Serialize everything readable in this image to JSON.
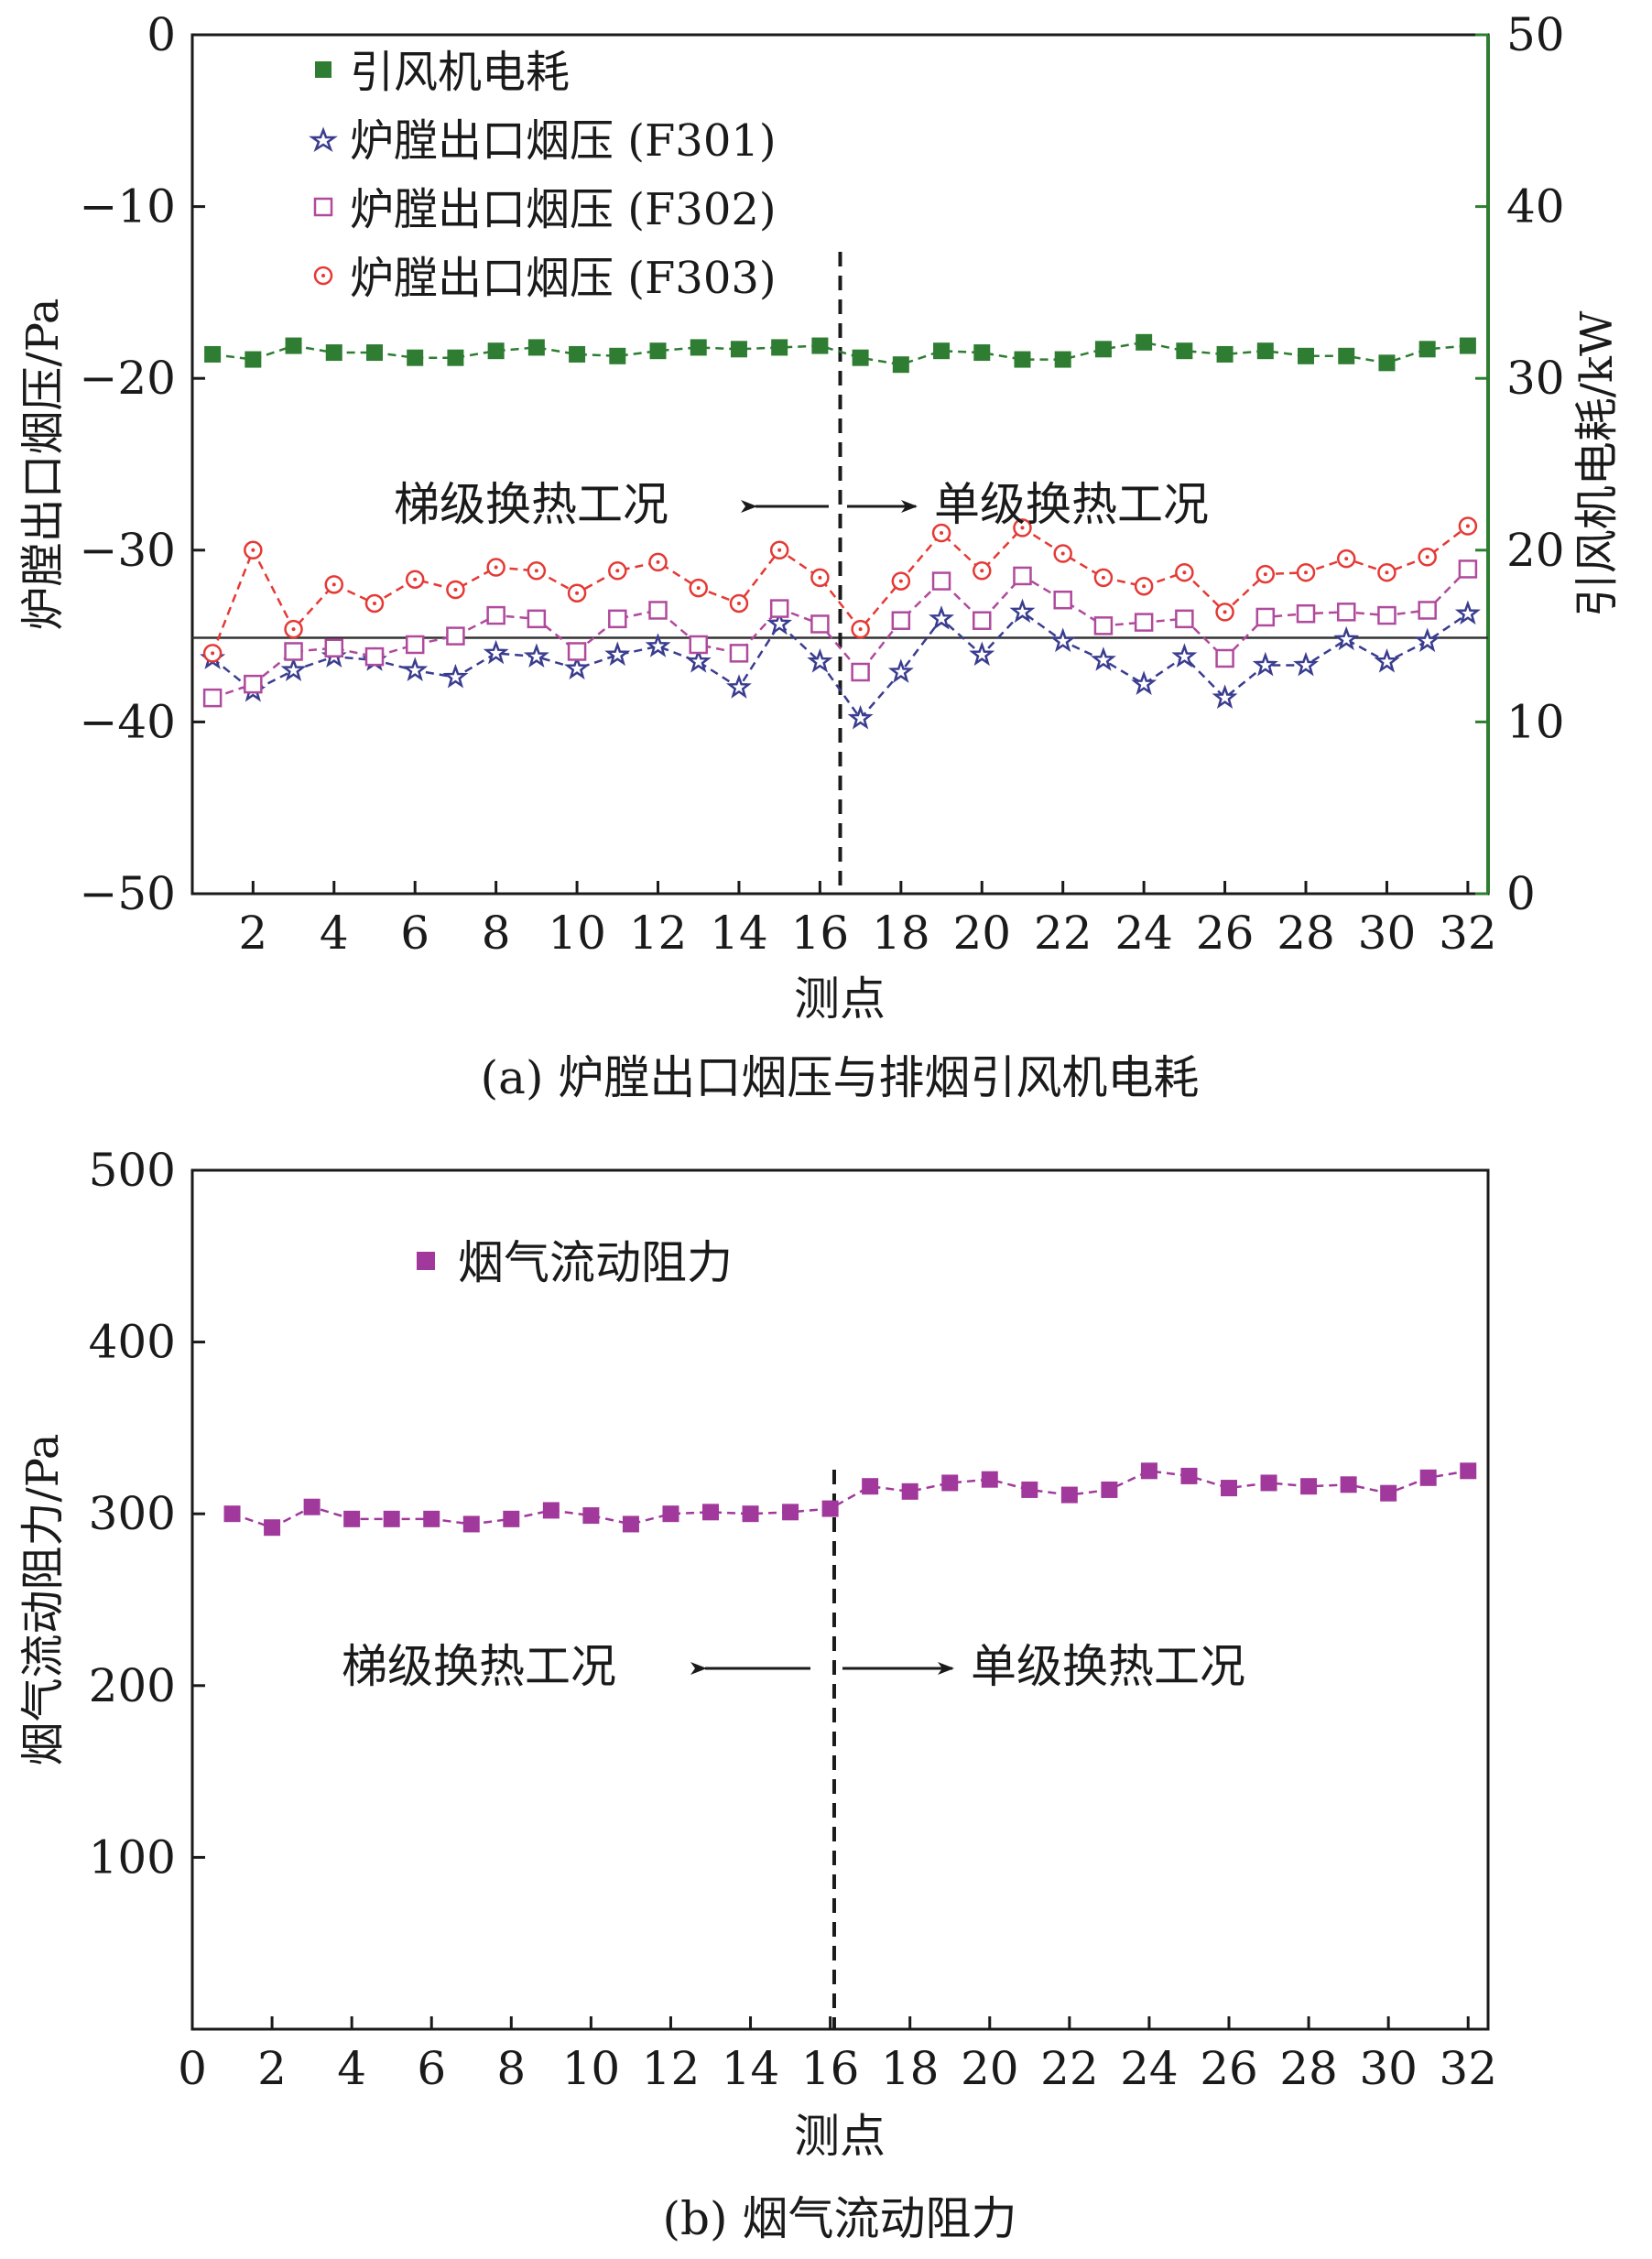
{
  "chart_data": [
    {
      "type": "line",
      "caption": "(a) 炉膛出口烟压与排烟引风机电耗",
      "xlabel": "测点",
      "ylabel": "炉膛出口烟压/Pa",
      "y2label": "引风机电耗/kW",
      "xlim": [
        0.5,
        32.5
      ],
      "ylim": [
        -50,
        0
      ],
      "y2lim": [
        0,
        50
      ],
      "xticks": [
        2,
        4,
        6,
        8,
        10,
        12,
        14,
        16,
        18,
        20,
        22,
        24,
        26,
        28,
        30,
        32
      ],
      "yticks": [
        0,
        -10,
        -20,
        -30,
        -40,
        -50
      ],
      "y2ticks": [
        50,
        40,
        30,
        20,
        10,
        0
      ],
      "x": [
        1,
        2,
        3,
        4,
        5,
        6,
        7,
        8,
        9,
        10,
        11,
        12,
        13,
        14,
        15,
        16,
        17,
        18,
        19,
        20,
        21,
        22,
        23,
        24,
        25,
        26,
        27,
        28,
        29,
        30,
        31,
        32
      ],
      "reference_line": -35.1,
      "divider_x": 16.5,
      "legend_position": "top-left",
      "annotations": {
        "left": "梯级换热工况",
        "right": "单级换热工况"
      },
      "series": [
        {
          "name": "引风机电耗",
          "axis": "right",
          "marker": "square-filled",
          "color": "#2e7d32",
          "values": [
            31.4,
            31.1,
            31.9,
            31.5,
            31.5,
            31.2,
            31.2,
            31.6,
            31.8,
            31.4,
            31.3,
            31.6,
            31.8,
            31.7,
            31.8,
            31.9,
            31.2,
            30.8,
            31.6,
            31.5,
            31.1,
            31.1,
            31.7,
            32.1,
            31.6,
            31.4,
            31.6,
            31.3,
            31.3,
            30.9,
            31.7,
            31.9
          ]
        },
        {
          "name": "炉膛出口烟压 (F301)",
          "axis": "left",
          "marker": "star",
          "color": "#3a3d8f",
          "values": [
            -36.3,
            -38.2,
            -37.0,
            -36.2,
            -36.4,
            -37.0,
            -37.4,
            -36.0,
            -36.2,
            -36.9,
            -36.1,
            -35.6,
            -36.5,
            -38.0,
            -34.3,
            -36.5,
            -39.8,
            -37.1,
            -34.0,
            -36.1,
            -33.6,
            -35.3,
            -36.4,
            -37.8,
            -36.2,
            -38.6,
            -36.7,
            -36.7,
            -35.2,
            -36.5,
            -35.3,
            -33.7
          ]
        },
        {
          "name": "炉膛出口烟压 (F302)",
          "axis": "left",
          "marker": "square-open",
          "color": "#b04a9c",
          "values": [
            -38.6,
            -37.8,
            -35.9,
            -35.7,
            -36.2,
            -35.5,
            -35.0,
            -33.8,
            -34.0,
            -35.9,
            -34.0,
            -33.5,
            -35.5,
            -36.0,
            -33.4,
            -34.3,
            -37.1,
            -34.1,
            -31.8,
            -34.1,
            -31.5,
            -32.9,
            -34.4,
            -34.2,
            -34.0,
            -36.3,
            -33.9,
            -33.7,
            -33.6,
            -33.8,
            -33.5,
            -31.1
          ]
        },
        {
          "name": "炉膛出口烟压 (F303)",
          "axis": "left",
          "marker": "circle-open",
          "color": "#e53935",
          "values": [
            -36.0,
            -30.0,
            -34.6,
            -32.0,
            -33.1,
            -31.7,
            -32.3,
            -31.0,
            -31.2,
            -32.5,
            -31.2,
            -30.7,
            -32.2,
            -33.1,
            -30.0,
            -31.6,
            -34.6,
            -31.8,
            -29.0,
            -31.2,
            -28.7,
            -30.2,
            -31.6,
            -32.1,
            -31.3,
            -33.6,
            -31.4,
            -31.3,
            -30.5,
            -31.3,
            -30.4,
            -28.6
          ]
        }
      ]
    },
    {
      "type": "line",
      "caption": "(b) 烟气流动阻力",
      "xlabel": "测点",
      "ylabel": "烟气流动阻力/Pa",
      "xlim": [
        0,
        32.5
      ],
      "ylim": [
        0,
        500
      ],
      "xticks": [
        0,
        2,
        4,
        6,
        8,
        10,
        12,
        14,
        16,
        18,
        20,
        22,
        24,
        26,
        28,
        30,
        32
      ],
      "yticks": [
        500,
        400,
        300,
        200,
        100
      ],
      "x": [
        1,
        2,
        3,
        4,
        5,
        6,
        7,
        8,
        9,
        10,
        11,
        12,
        13,
        14,
        15,
        16,
        17,
        18,
        19,
        20,
        21,
        22,
        23,
        24,
        25,
        26,
        27,
        28,
        29,
        30,
        31,
        32
      ],
      "divider_x": 16.1,
      "legend_position": "top-left",
      "annotations": {
        "left": "梯级换热工况",
        "right": "单级换热工况"
      },
      "series": [
        {
          "name": "烟气流动阻力",
          "marker": "square-filled",
          "color": "#a0399b",
          "values": [
            300,
            292,
            304,
            297,
            297,
            297,
            294,
            297,
            302,
            299,
            294,
            300,
            301,
            300,
            301,
            303,
            316,
            313,
            318,
            320,
            314,
            311,
            314,
            325,
            322,
            315,
            318,
            316,
            317,
            312,
            321,
            325
          ]
        }
      ]
    }
  ]
}
